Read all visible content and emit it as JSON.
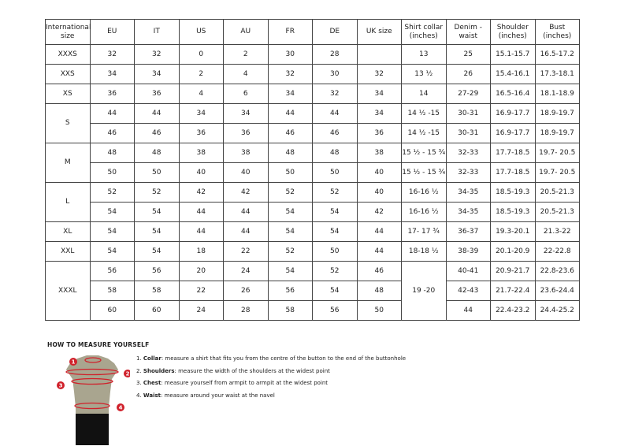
{
  "headers": [
    "International size",
    "EU",
    "IT",
    "US",
    "AU",
    "FR",
    "DE",
    "UK size",
    "Shirt collar (inches)",
    "Denim - waist",
    "Shoulder (inches)",
    "Bust (inches)"
  ],
  "groups": [
    {
      "size": "XXXS",
      "rows": [
        [
          "32",
          "32",
          "0",
          "2",
          "30",
          "28",
          "",
          "13",
          "25",
          "15.1-15.7",
          "16.5-17.2"
        ]
      ]
    },
    {
      "size": "XXS",
      "rows": [
        [
          "34",
          "34",
          "2",
          "4",
          "32",
          "30",
          "32",
          "13 ½",
          "26",
          "15.4-16.1",
          "17.3-18.1"
        ]
      ]
    },
    {
      "size": "XS",
      "rows": [
        [
          "36",
          "36",
          "4",
          "6",
          "34",
          "32",
          "34",
          "14",
          "27-29",
          "16.5-16.4",
          "18.1-18.9"
        ]
      ]
    },
    {
      "size": "S",
      "rows": [
        [
          "44",
          "44",
          "34",
          "34",
          "44",
          "44",
          "34",
          "14 ½ -15",
          "30-31",
          "16.9-17.7",
          "18.9-19.7"
        ],
        [
          "46",
          "46",
          "36",
          "36",
          "46",
          "46",
          "36",
          "14 ½ -15",
          "30-31",
          "16.9-17.7",
          "18.9-19.7"
        ]
      ]
    },
    {
      "size": "M",
      "rows": [
        [
          "48",
          "48",
          "38",
          "38",
          "48",
          "48",
          "38",
          "15 ½ - 15 ¾",
          "32-33",
          "17.7-18.5",
          "19.7- 20.5"
        ],
        [
          "50",
          "50",
          "40",
          "40",
          "50",
          "50",
          "40",
          "15 ½ - 15 ¾",
          "32-33",
          "17.7-18.5",
          "19.7- 20.5"
        ]
      ]
    },
    {
      "size": "L",
      "rows": [
        [
          "52",
          "52",
          "42",
          "42",
          "52",
          "52",
          "40",
          "16-16 ½",
          "34-35",
          "18.5-19.3",
          "20.5-21.3"
        ],
        [
          "54",
          "54",
          "44",
          "44",
          "54",
          "54",
          "42",
          "16-16 ½",
          "34-35",
          "18.5-19.3",
          "20.5-21.3"
        ]
      ]
    },
    {
      "size": "XL",
      "rows": [
        [
          "54",
          "54",
          "44",
          "44",
          "54",
          "54",
          "44",
          "17- 17 ¾",
          "36-37",
          "19.3-20.1",
          "21.3-22"
        ]
      ]
    },
    {
      "size": "XXL",
      "rows": [
        [
          "54",
          "54",
          "18",
          "22",
          "52",
          "50",
          "44",
          "18-18 ½",
          "38-39",
          "20.1-20.9",
          "22-22.8"
        ]
      ]
    },
    {
      "size": "XXXL",
      "collar_merged": "19 -20",
      "rows": [
        [
          "56",
          "56",
          "20",
          "24",
          "54",
          "52",
          "46",
          null,
          "40-41",
          "20.9-21.7",
          "22.8-23.6"
        ],
        [
          "58",
          "58",
          "22",
          "26",
          "56",
          "54",
          "48",
          null,
          "42-43",
          "21.7-22.4",
          "23.6-24.4"
        ],
        [
          "60",
          "60",
          "24",
          "28",
          "58",
          "56",
          "50",
          null,
          "44",
          "22.4-23.2",
          "24.4-25.2"
        ]
      ]
    }
  ],
  "guide": {
    "title": "HOW TO MEASURE YOURSELF",
    "steps": [
      {
        "num": "1.",
        "term": "Collar",
        "text": ": measure a shirt that fits you from the centre of the button to the end of the buttonhole"
      },
      {
        "num": "2.",
        "term": "Shoulders",
        "text": ": measure the width of the shoulders at the widest point"
      },
      {
        "num": "3.",
        "term": "Chest",
        "text": ": measure yourself from armpit to armpit at the widest point"
      },
      {
        "num": "4.",
        "term": "Waist",
        "text": ": measure around your waist at the navel"
      }
    ],
    "markers": [
      "1",
      "2",
      "3",
      "4"
    ],
    "colors": {
      "marker": "#d0202a",
      "torso": "#a9a58f",
      "shorts": "#111111"
    }
  }
}
